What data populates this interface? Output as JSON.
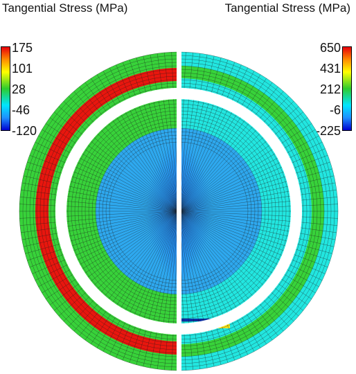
{
  "left_panel": {
    "title": "Tangential Stress (MPa)",
    "colorbar_ticks": [
      "175",
      "101",
      "28",
      "-46",
      "-120"
    ]
  },
  "right_panel": {
    "title": "Tangential Stress (MPa)",
    "colorbar_ticks": [
      "650",
      "431",
      "212",
      "-6",
      "-225"
    ]
  },
  "colors": {
    "red": "#e8160e",
    "green": "#38d23a",
    "cyan": "#22e6e0",
    "blue_core": "#0d52d8",
    "mesh_line": "#1a1a1a",
    "yellow": "#f5e21a",
    "dark_blue": "#0b2fa8"
  }
}
